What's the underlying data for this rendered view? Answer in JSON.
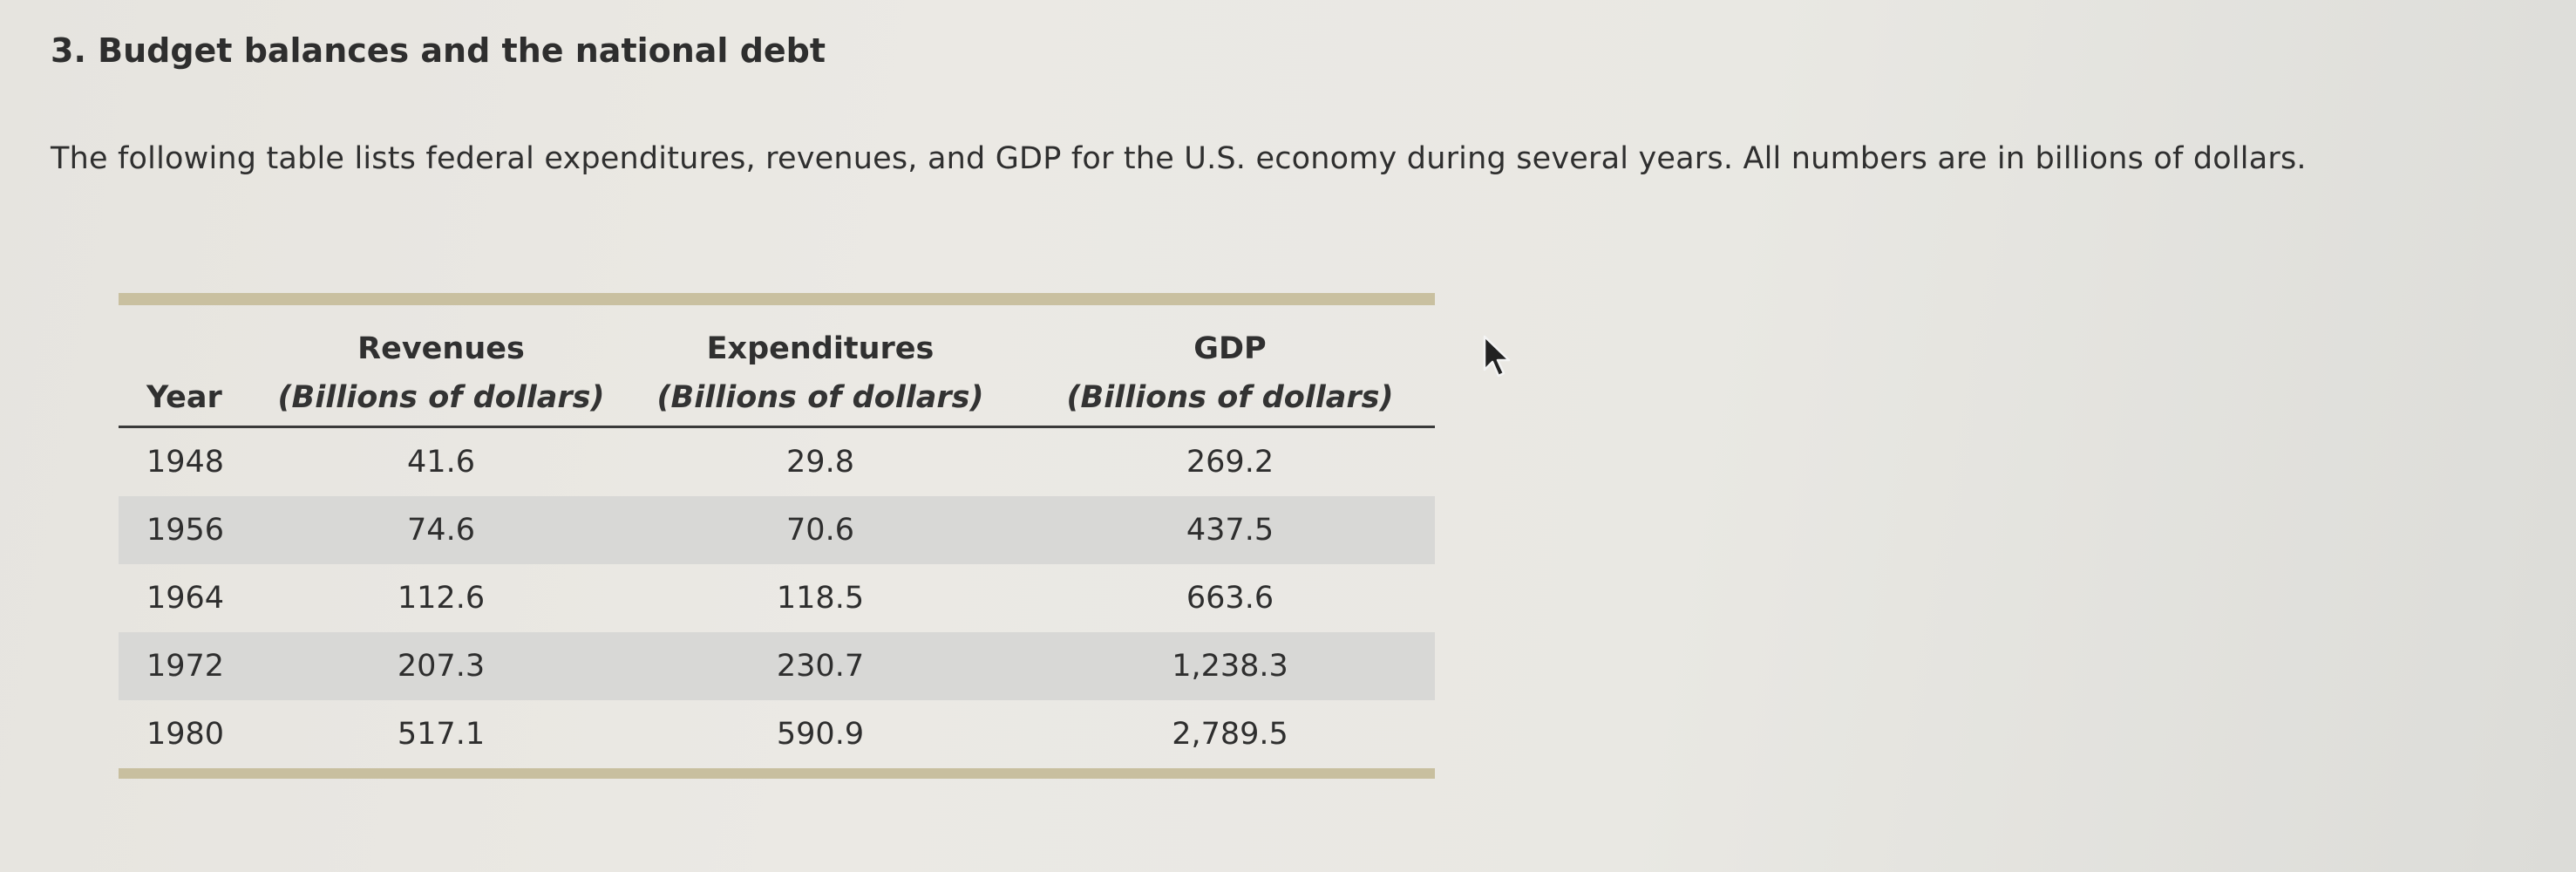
{
  "heading": "3. Budget balances and the national debt",
  "intro": "The following table lists federal expenditures, revenues, and GDP for the U.S. economy during several years. All numbers are in billions of dollars.",
  "table": {
    "headers": {
      "year": "Year",
      "revenues": "Revenues",
      "revenues_unit": "(Billions of dollars)",
      "expenditures": "Expenditures",
      "expenditures_unit": "(Billions of dollars)",
      "gdp": "GDP",
      "gdp_unit": "(Billions of dollars)"
    },
    "rows": [
      {
        "year": "1948",
        "revenues": "41.6",
        "expenditures": "29.8",
        "gdp": "269.2"
      },
      {
        "year": "1956",
        "revenues": "74.6",
        "expenditures": "70.6",
        "gdp": "437.5"
      },
      {
        "year": "1964",
        "revenues": "112.6",
        "expenditures": "118.5",
        "gdp": "663.6"
      },
      {
        "year": "1972",
        "revenues": "207.3",
        "expenditures": "230.7",
        "gdp": "1,238.3"
      },
      {
        "year": "1980",
        "revenues": "517.1",
        "expenditures": "590.9",
        "gdp": "2,789.5"
      }
    ]
  },
  "cursor_icon": "arrow-cursor-icon"
}
